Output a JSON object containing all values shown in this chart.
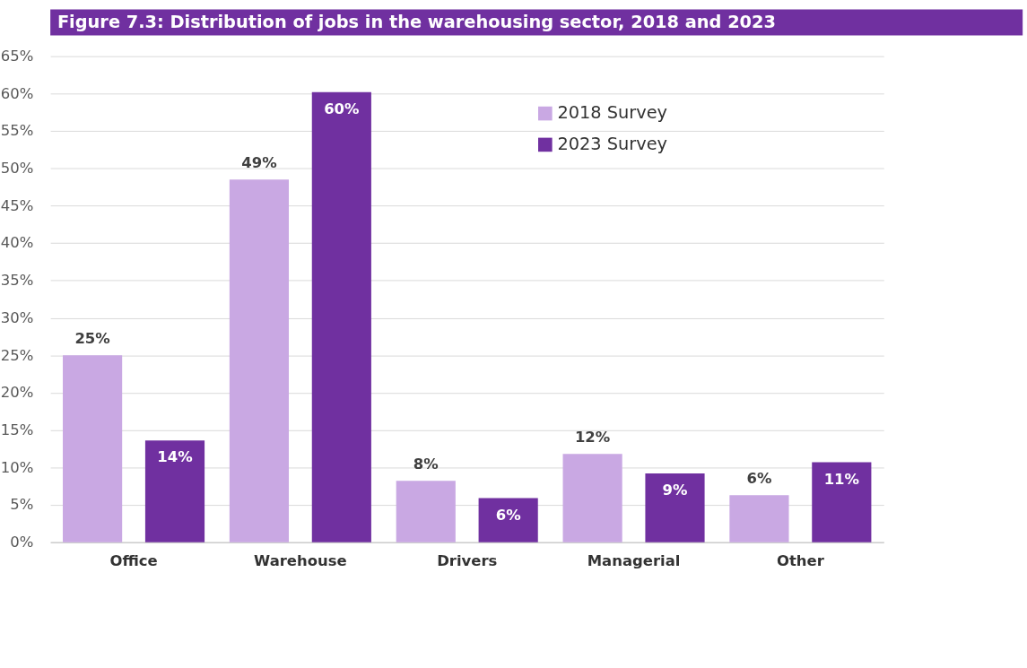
{
  "chart_data": {
    "type": "bar",
    "title": "Figure 7.3: Distribution of jobs in the warehousing sector, 2018 and 2023",
    "categories": [
      "Office",
      "Warehouse",
      "Drivers",
      "Managerial",
      "Other"
    ],
    "series": [
      {
        "name": "2018 Survey",
        "color": "#c9a8e3",
        "values": [
          25,
          48.5,
          8.2,
          11.8,
          6.3
        ],
        "value_labels": [
          "25%",
          "49%",
          "8%",
          "12%",
          "6%"
        ]
      },
      {
        "name": "2023 Survey",
        "color": "#7030a0",
        "values": [
          13.6,
          60.2,
          5.9,
          9.2,
          10.7
        ],
        "value_labels": [
          "14%",
          "60%",
          "6%",
          "9%",
          "11%"
        ]
      }
    ],
    "ylim": [
      0,
      65
    ],
    "yticks": [
      {
        "value": 0,
        "label": "0%"
      },
      {
        "value": 5,
        "label": "5%"
      },
      {
        "value": 10,
        "label": "10%"
      },
      {
        "value": 15,
        "label": "15%"
      },
      {
        "value": 20,
        "label": "20%"
      },
      {
        "value": 25,
        "label": "25%"
      },
      {
        "value": 30,
        "label": "30%"
      },
      {
        "value": 35,
        "label": "35%"
      },
      {
        "value": 40,
        "label": "40%"
      },
      {
        "value": 45,
        "label": "45%"
      },
      {
        "value": 50,
        "label": "50%"
      },
      {
        "value": 55,
        "label": "55%"
      },
      {
        "value": 60,
        "label": "60%"
      },
      {
        "value": 65,
        "label": "65%"
      }
    ],
    "grid": "y",
    "legend": "top right"
  }
}
